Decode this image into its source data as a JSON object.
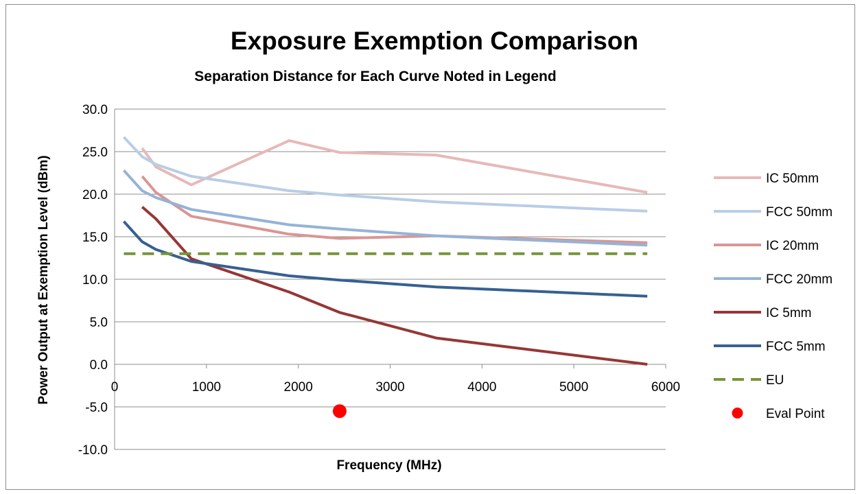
{
  "chart_data": {
    "type": "line",
    "title": "Exposure Exemption Comparison",
    "subtitle": "Separation Distance for Each Curve Noted in Legend",
    "xlabel": "Frequency (MHz)",
    "ylabel": "Power Output at Exemption Level (dBm)",
    "xlim": [
      0,
      6000
    ],
    "ylim": [
      -10,
      30
    ],
    "x_ticks": [
      0,
      1000,
      2000,
      3000,
      4000,
      5000,
      6000
    ],
    "x_tick_labels": [
      "0",
      "1000",
      "2000",
      "3000",
      "4000",
      "5000",
      "6000"
    ],
    "y_ticks": [
      30,
      25,
      20,
      15,
      10,
      5,
      0,
      -5,
      -10
    ],
    "y_tick_labels": [
      "30.0",
      "25.0",
      "20.0",
      "15.0",
      "10.0",
      "5.0",
      "0.0",
      "-5.0",
      "-10.0"
    ],
    "grid": "horizontal",
    "legend_position": "right",
    "series": [
      {
        "name": "IC 50mm",
        "color": "#e6b9b8",
        "style": "solid",
        "x": [
          300,
          450,
          835,
          1900,
          2450,
          3500,
          5800
        ],
        "y": [
          25.4,
          23.2,
          21.1,
          26.3,
          24.9,
          24.6,
          20.2
        ]
      },
      {
        "name": "FCC 50mm",
        "color": "#b9cde5",
        "style": "solid",
        "x": [
          100,
          300,
          450,
          835,
          1900,
          2450,
          3500,
          5800
        ],
        "y": [
          26.7,
          24.4,
          23.5,
          22.1,
          20.4,
          19.9,
          19.1,
          18.0
        ]
      },
      {
        "name": "IC 20mm",
        "color": "#d99694",
        "style": "solid",
        "x": [
          300,
          450,
          835,
          1900,
          2450,
          3500,
          5800
        ],
        "y": [
          22.1,
          20.2,
          17.4,
          15.3,
          14.8,
          15.1,
          14.3
        ]
      },
      {
        "name": "FCC 20mm",
        "color": "#95b3d7",
        "style": "solid",
        "x": [
          100,
          300,
          450,
          835,
          1900,
          2450,
          3500,
          5800
        ],
        "y": [
          22.8,
          20.4,
          19.6,
          18.2,
          16.4,
          15.9,
          15.1,
          14.0
        ]
      },
      {
        "name": "IC 5mm",
        "color": "#953735",
        "style": "solid",
        "x": [
          300,
          450,
          835,
          1900,
          2450,
          3500,
          5800
        ],
        "y": [
          18.5,
          17.1,
          12.4,
          8.5,
          6.1,
          3.1,
          0.0
        ]
      },
      {
        "name": "FCC 5mm",
        "color": "#376092",
        "style": "solid",
        "x": [
          100,
          300,
          450,
          835,
          1900,
          2450,
          3500,
          5800
        ],
        "y": [
          16.8,
          14.4,
          13.5,
          12.1,
          10.4,
          9.9,
          9.1,
          8.0
        ]
      },
      {
        "name": "EU",
        "color": "#77933c",
        "style": "dashed",
        "x": [
          100,
          5800
        ],
        "y": [
          13.0,
          13.0
        ]
      }
    ],
    "points": [
      {
        "name": "Eval Point",
        "color": "#ff0000",
        "x": 2450,
        "y": -5.5
      }
    ]
  }
}
